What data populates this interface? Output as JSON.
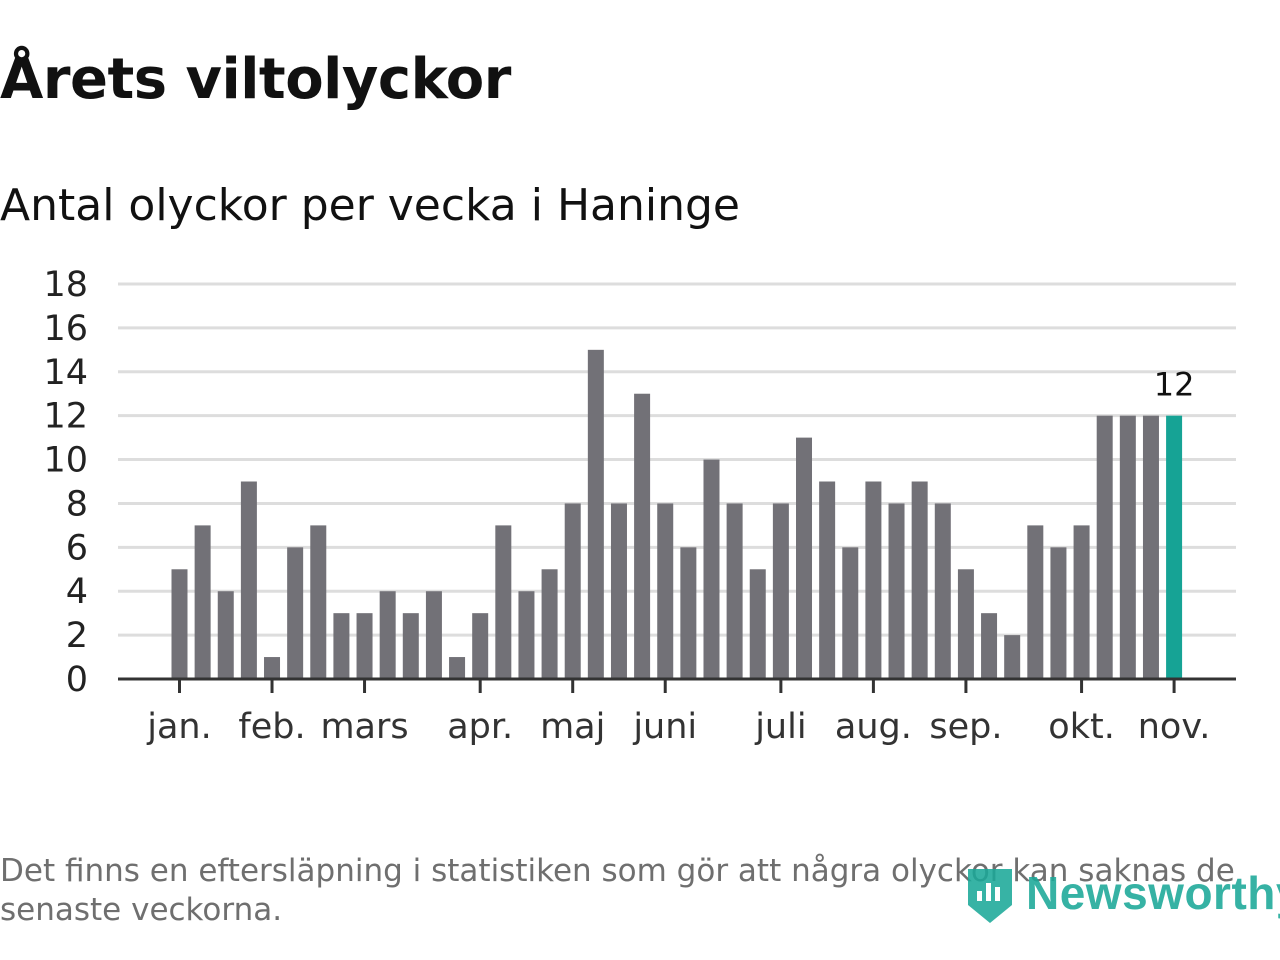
{
  "title": "Årets viltolyckor",
  "subtitle": "Antal olyckor per vecka i Haninge",
  "footnote": "Det finns en eftersläpning i statistiken som gör att några olyckor kan saknas de senaste veckorna.",
  "brand": "Newsworthy",
  "colors": {
    "bar": "#727177",
    "highlight": "#16a395",
    "grid": "#dddddd",
    "axis": "#333333"
  },
  "chart_data": {
    "type": "bar",
    "title": "Årets viltolyckor",
    "subtitle": "Antal olyckor per vecka i Haninge",
    "xlabel": "",
    "ylabel": "",
    "ylim": [
      0,
      18
    ],
    "yticks": [
      0,
      2,
      4,
      6,
      8,
      10,
      12,
      14,
      16,
      18
    ],
    "grid": true,
    "weeks": [
      1,
      2,
      3,
      4,
      5,
      6,
      7,
      8,
      9,
      10,
      11,
      12,
      13,
      14,
      15,
      16,
      17,
      18,
      19,
      20,
      21,
      22,
      23,
      24,
      25,
      26,
      27,
      28,
      29,
      30,
      31,
      32,
      33,
      34,
      35,
      36,
      37,
      38,
      39,
      40,
      41,
      42,
      43,
      44
    ],
    "values": [
      5,
      7,
      4,
      9,
      1,
      6,
      7,
      3,
      3,
      4,
      3,
      4,
      1,
      3,
      7,
      4,
      5,
      8,
      15,
      8,
      13,
      8,
      6,
      10,
      8,
      5,
      8,
      11,
      9,
      6,
      9,
      8,
      9,
      8,
      5,
      3,
      2,
      7,
      6,
      7,
      12,
      12,
      12,
      12
    ],
    "highlight_last": true,
    "annotation": {
      "text": "12",
      "week": 44
    },
    "month_ticks": [
      {
        "label": "jan.",
        "week": 1
      },
      {
        "label": "feb.",
        "week": 5
      },
      {
        "label": "mars",
        "week": 9
      },
      {
        "label": "apr.",
        "week": 14
      },
      {
        "label": "maj",
        "week": 18
      },
      {
        "label": "juni",
        "week": 22
      },
      {
        "label": "juli",
        "week": 27
      },
      {
        "label": "aug.",
        "week": 31
      },
      {
        "label": "sep.",
        "week": 35
      },
      {
        "label": "okt.",
        "week": 40
      },
      {
        "label": "nov.",
        "week": 44
      }
    ]
  }
}
